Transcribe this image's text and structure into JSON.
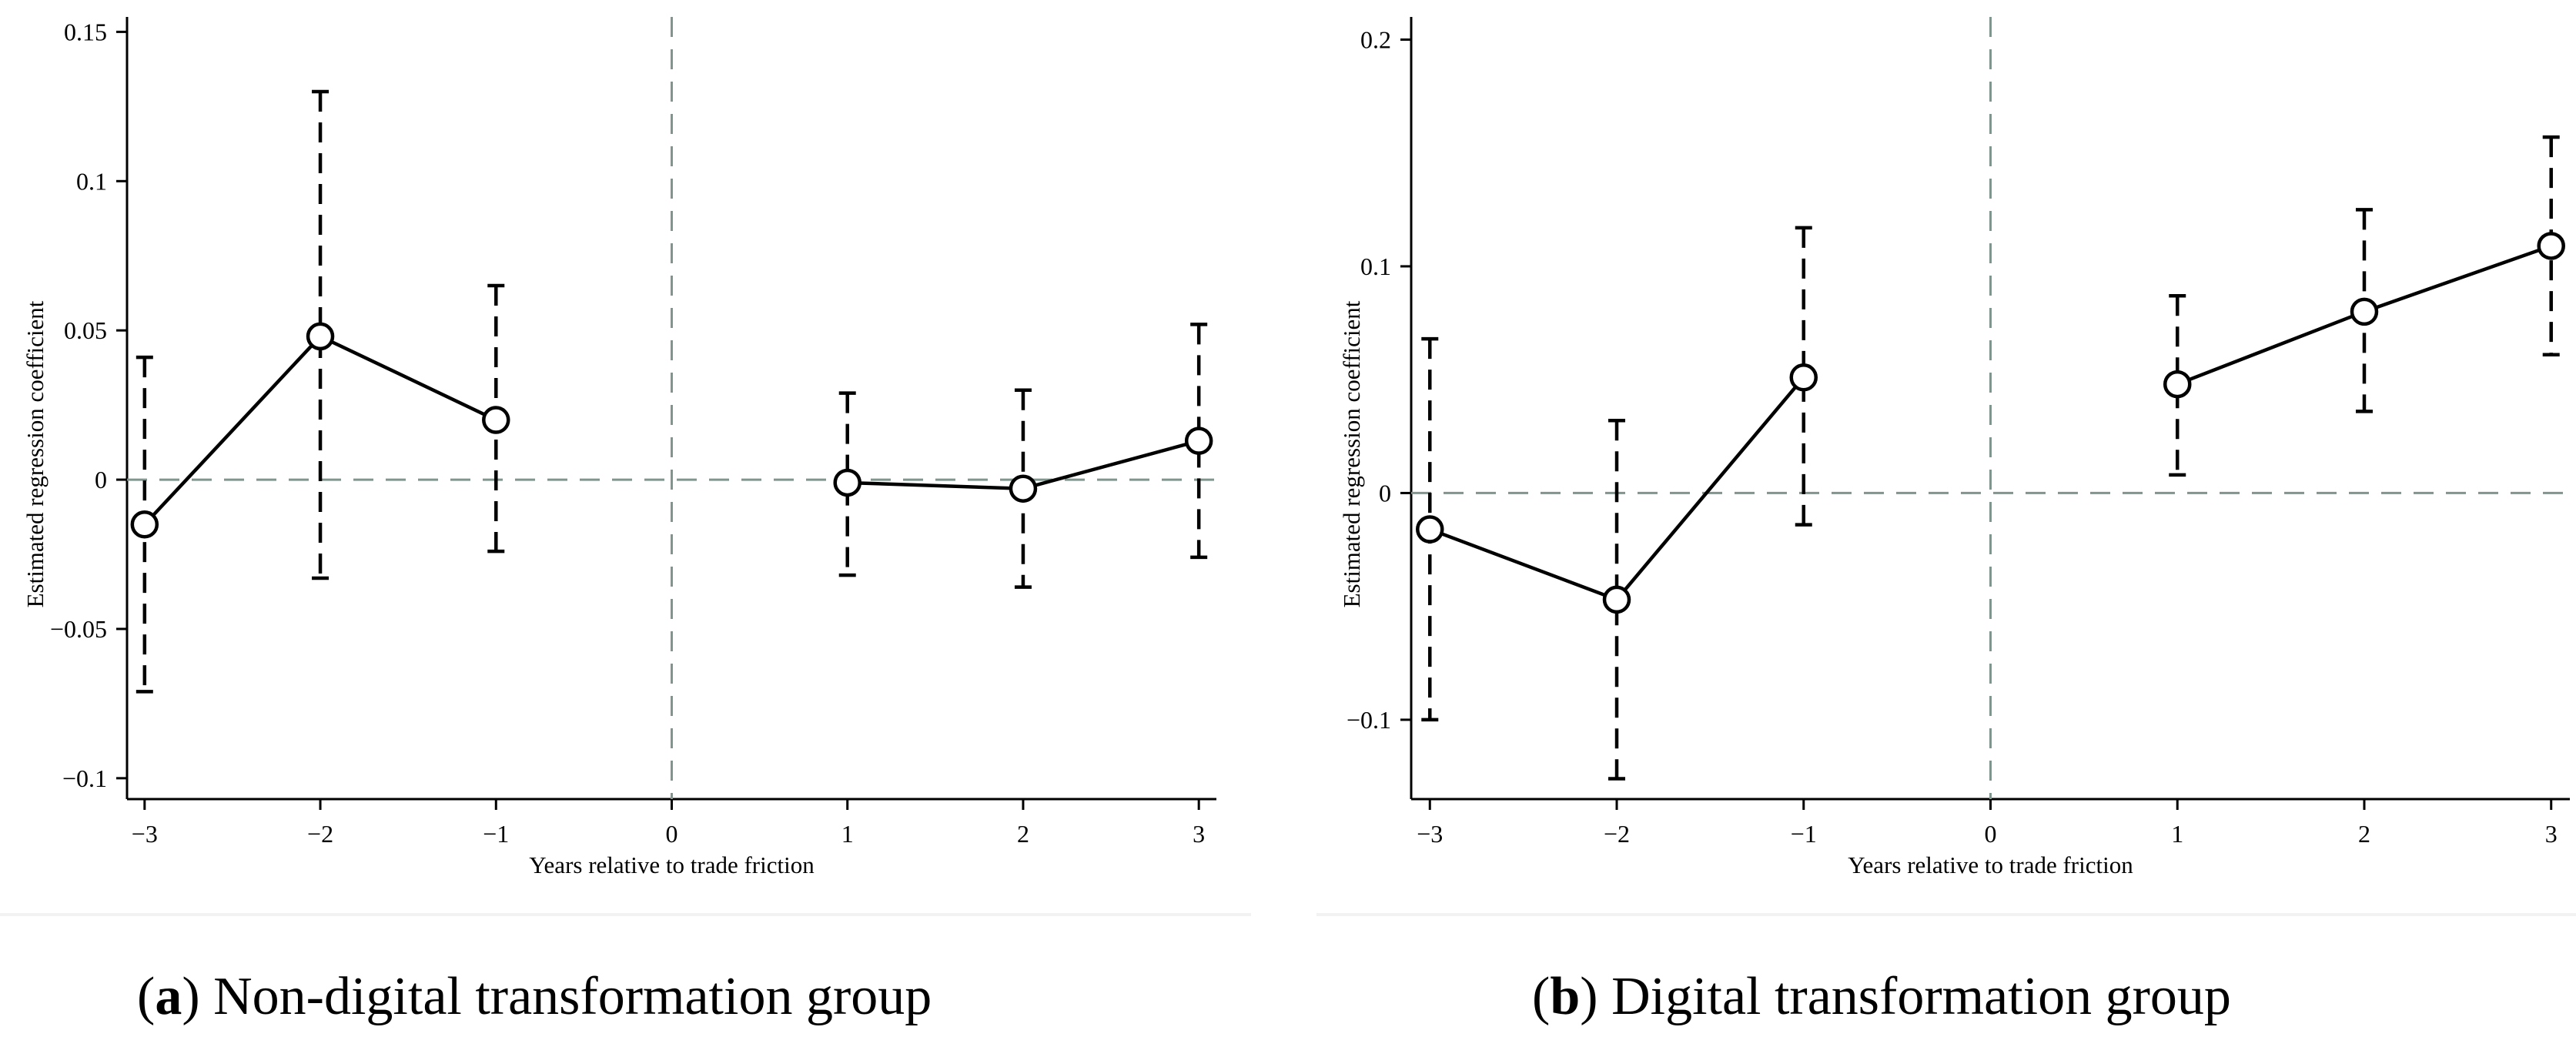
{
  "chart_data": [
    {
      "type": "line",
      "panel_tag": "a",
      "caption": "Non-digital transformation group",
      "xlabel": "Years relative to trade friction",
      "ylabel": "Estimated regression coefficient",
      "x_ticks": [
        -3,
        -2,
        -1,
        0,
        1,
        2,
        3
      ],
      "x_tick_labels": [
        "−3",
        "−2",
        "−1",
        "0",
        "1",
        "2",
        "3"
      ],
      "y_ticks": [
        -0.1,
        -0.05,
        0,
        0.05,
        0.1,
        0.15
      ],
      "y_tick_labels": [
        "−0.1",
        "−0.05",
        "0",
        "0.05",
        "0.1",
        "0.15"
      ],
      "xlim": [
        -3.1,
        3.1
      ],
      "ylim": [
        -0.107,
        0.155
      ],
      "reference_lines": {
        "x": 0,
        "y": 0
      },
      "series": [
        {
          "name": "pre",
          "x": [
            -3,
            -2,
            -1
          ],
          "y": [
            -0.015,
            0.048,
            0.02
          ],
          "ci_low": [
            -0.071,
            -0.033,
            -0.024
          ],
          "ci_high": [
            0.041,
            0.13,
            0.065
          ]
        },
        {
          "name": "post",
          "x": [
            1,
            2,
            3
          ],
          "y": [
            -0.001,
            -0.003,
            0.013
          ],
          "ci_low": [
            -0.032,
            -0.036,
            -0.026
          ],
          "ci_high": [
            0.029,
            0.03,
            0.052
          ]
        }
      ]
    },
    {
      "type": "line",
      "panel_tag": "b",
      "caption": "Digital transformation group",
      "xlabel": "Years relative to trade friction",
      "ylabel": "Estimated regression coefficient",
      "x_ticks": [
        -3,
        -2,
        -1,
        0,
        1,
        2,
        3
      ],
      "x_tick_labels": [
        "−3",
        "−2",
        "−1",
        "0",
        "1",
        "2",
        "3"
      ],
      "y_ticks": [
        -0.1,
        0,
        0.1,
        0.2
      ],
      "y_tick_labels": [
        "−0.1",
        "0",
        "0.1",
        "0.2"
      ],
      "xlim": [
        -3.1,
        3.1
      ],
      "ylim": [
        -0.135,
        0.21
      ],
      "reference_lines": {
        "x": 0,
        "y": 0
      },
      "series": [
        {
          "name": "pre",
          "x": [
            -3,
            -2,
            -1
          ],
          "y": [
            -0.016,
            -0.047,
            0.051
          ],
          "ci_low": [
            -0.1,
            -0.126,
            -0.014
          ],
          "ci_high": [
            0.068,
            0.032,
            0.117
          ]
        },
        {
          "name": "post",
          "x": [
            1,
            2,
            3
          ],
          "y": [
            0.048,
            0.08,
            0.109
          ],
          "ci_low": [
            0.008,
            0.036,
            0.061
          ],
          "ci_high": [
            0.087,
            0.125,
            0.157
          ]
        }
      ]
    }
  ],
  "style": {
    "refline_color": "#7f958e",
    "line_color": "#000000"
  }
}
